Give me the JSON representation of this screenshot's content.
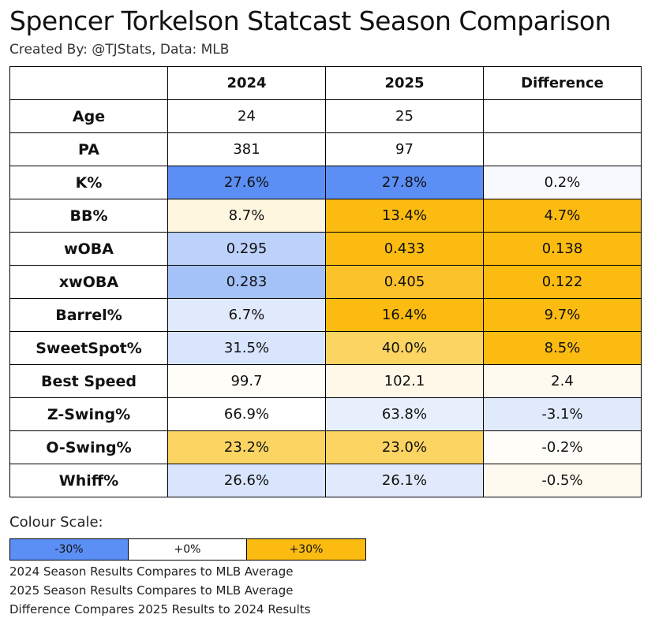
{
  "title": "Spencer Torkelson Statcast Season Comparison",
  "subtitle": "Created By: @TJStats, Data: MLB",
  "chart_data": {
    "type": "table",
    "columns": [
      "",
      "2024",
      "2025",
      "Difference"
    ],
    "rows": [
      {
        "metric": "Age",
        "cells": [
          {
            "text": "24",
            "color": "#ffffff"
          },
          {
            "text": "25",
            "color": "#ffffff"
          },
          {
            "text": "",
            "color": "#ffffff"
          }
        ]
      },
      {
        "metric": "PA",
        "cells": [
          {
            "text": "381",
            "color": "#ffffff"
          },
          {
            "text": "97",
            "color": "#ffffff"
          },
          {
            "text": "",
            "color": "#ffffff"
          }
        ]
      },
      {
        "metric": "K%",
        "cells": [
          {
            "text": "27.6%",
            "color": "#5b8ff5"
          },
          {
            "text": "27.8%",
            "color": "#5b8ff5"
          },
          {
            "text": "0.2%",
            "color": "#f7f9fe"
          }
        ]
      },
      {
        "metric": "BB%",
        "cells": [
          {
            "text": "8.7%",
            "color": "#fff6e0"
          },
          {
            "text": "13.4%",
            "color": "#fbbb10"
          },
          {
            "text": "4.7%",
            "color": "#fbbb10"
          }
        ]
      },
      {
        "metric": "wOBA",
        "cells": [
          {
            "text": "0.295",
            "color": "#bcd2fa"
          },
          {
            "text": "0.433",
            "color": "#fbbb10"
          },
          {
            "text": "0.138",
            "color": "#fbbb10"
          }
        ]
      },
      {
        "metric": "xwOBA",
        "cells": [
          {
            "text": "0.283",
            "color": "#a4c2f8"
          },
          {
            "text": "0.405",
            "color": "#fcc22a"
          },
          {
            "text": "0.122",
            "color": "#fbbb10"
          }
        ]
      },
      {
        "metric": "Barrel%",
        "cells": [
          {
            "text": "6.7%",
            "color": "#e1eafc"
          },
          {
            "text": "16.4%",
            "color": "#fbbb10"
          },
          {
            "text": "9.7%",
            "color": "#fbbb10"
          }
        ]
      },
      {
        "metric": "SweetSpot%",
        "cells": [
          {
            "text": "31.5%",
            "color": "#d8e5fc"
          },
          {
            "text": "40.0%",
            "color": "#fcd462"
          },
          {
            "text": "8.5%",
            "color": "#fbbb10"
          }
        ]
      },
      {
        "metric": "Best Speed",
        "cells": [
          {
            "text": "99.7",
            "color": "#fffdf7"
          },
          {
            "text": "102.1",
            "color": "#fff8e8"
          },
          {
            "text": "2.4",
            "color": "#fffaf0"
          }
        ]
      },
      {
        "metric": "Z-Swing%",
        "cells": [
          {
            "text": "66.9%",
            "color": "#ffffff"
          },
          {
            "text": "63.8%",
            "color": "#e7effd"
          },
          {
            "text": "-3.1%",
            "color": "#e1eafc"
          }
        ]
      },
      {
        "metric": "O-Swing%",
        "cells": [
          {
            "text": "23.2%",
            "color": "#fcd462"
          },
          {
            "text": "23.0%",
            "color": "#fcd462"
          },
          {
            "text": "-0.2%",
            "color": "#fffdf8"
          }
        ]
      },
      {
        "metric": "Whiff%",
        "cells": [
          {
            "text": "26.6%",
            "color": "#d8e5fc"
          },
          {
            "text": "26.1%",
            "color": "#e1eafc"
          },
          {
            "text": "-0.5%",
            "color": "#fffaf0"
          }
        ]
      }
    ]
  },
  "legend": {
    "title": "Colour Scale:",
    "segments": [
      {
        "label": "-30%",
        "color": "#5b8ff5"
      },
      {
        "label": "+0%",
        "color": "#ffffff"
      },
      {
        "label": "+30%",
        "color": "#fbbb10"
      }
    ],
    "notes": [
      "2024 Season Results Compares to MLB Average",
      "2025 Season Results Compares to MLB Average",
      "Difference Compares 2025 Results to 2024 Results"
    ]
  }
}
